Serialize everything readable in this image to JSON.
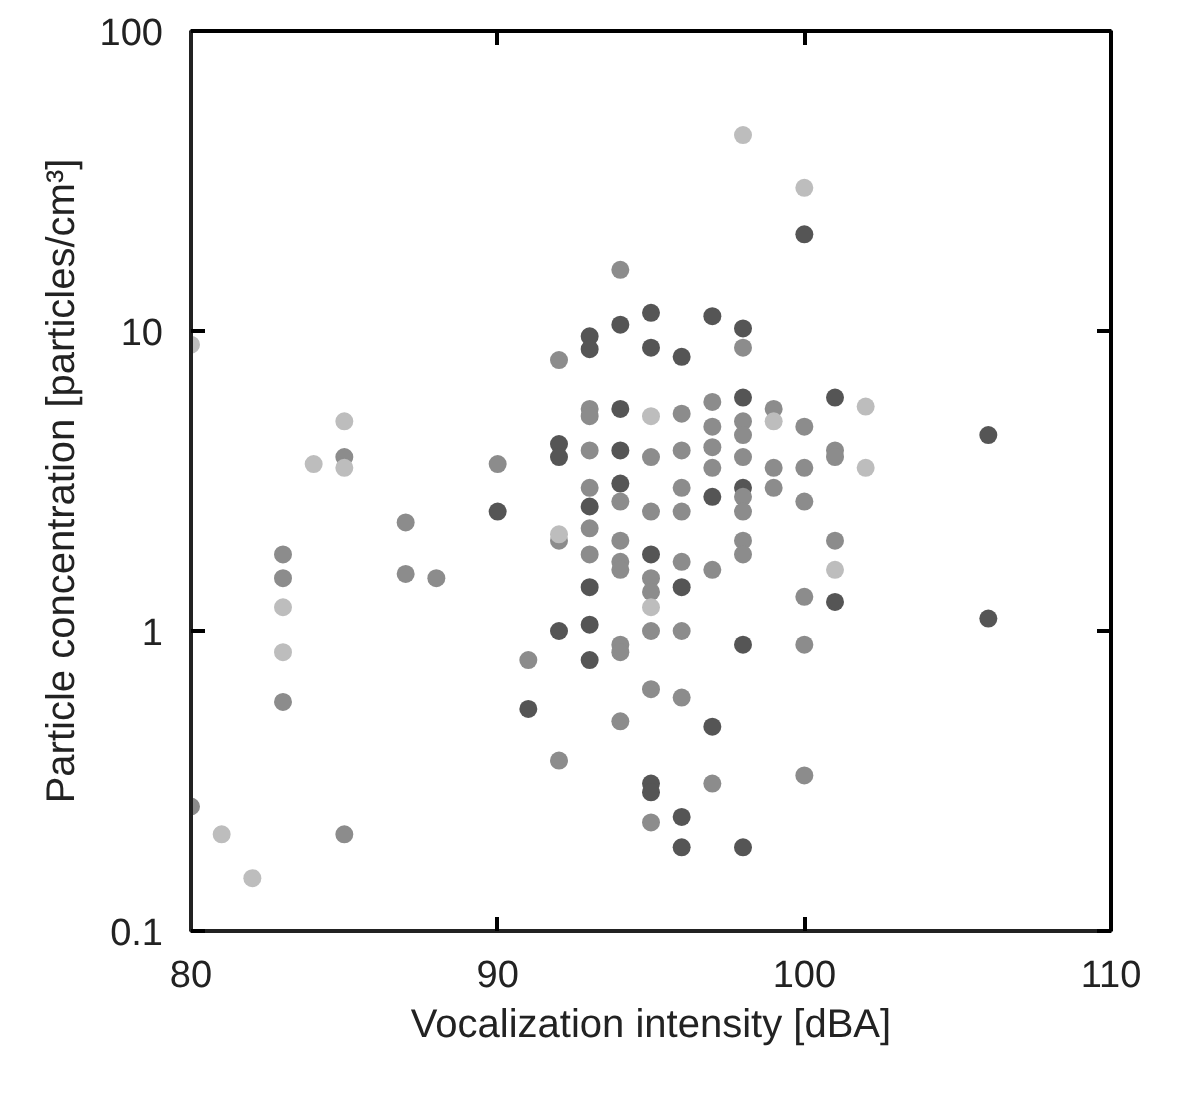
{
  "chart_data": {
    "type": "scatter",
    "xlabel": "Vocalization intensity [dBA]",
    "ylabel": "Particle concentration [particles/cm³]",
    "log": "y",
    "grid": false,
    "marker": "circle",
    "xlim": [
      80,
      110
    ],
    "ylim": [
      0.1,
      100
    ],
    "xticks": [
      80,
      90,
      100,
      110
    ],
    "yticks": [
      0.1,
      1,
      10,
      100
    ],
    "series": [
      {
        "color": "#555555",
        "x": [
          90,
          91,
          92,
          92,
          92,
          93,
          93,
          93,
          93,
          93,
          93,
          94,
          94,
          94,
          94,
          95,
          95,
          95,
          95,
          95,
          96,
          96,
          96,
          96,
          97,
          97,
          97,
          98,
          98,
          98,
          98,
          98,
          100,
          101,
          101,
          106,
          106
        ],
        "values": [
          2.5,
          0.55,
          4.2,
          3.8,
          1.0,
          9.6,
          8.7,
          2.6,
          1.4,
          1.05,
          0.8,
          10.5,
          5.5,
          4.0,
          3.1,
          11.5,
          8.8,
          1.8,
          0.31,
          0.29,
          8.2,
          1.4,
          0.24,
          0.19,
          11.2,
          2.8,
          0.48,
          10.2,
          6.0,
          3.0,
          0.9,
          0.19,
          21,
          6.0,
          1.25,
          4.5,
          1.1
        ]
      },
      {
        "color": "#8c8c8c",
        "x": [
          80,
          83,
          83,
          83,
          85,
          85,
          87,
          87,
          88,
          90,
          91,
          92,
          92,
          92,
          93,
          93,
          93,
          93,
          93,
          93,
          94,
          94,
          94,
          94,
          94,
          94,
          94,
          94,
          95,
          95,
          95,
          95,
          95,
          95,
          95,
          96,
          96,
          96,
          96,
          96,
          96,
          96,
          97,
          97,
          97,
          97,
          97,
          97,
          98,
          98,
          98,
          98,
          98,
          98,
          98,
          98,
          99,
          99,
          99,
          100,
          100,
          100,
          100,
          100,
          100,
          101,
          101,
          101
        ],
        "values": [
          0.26,
          1.8,
          1.5,
          0.58,
          3.8,
          0.21,
          2.3,
          1.55,
          1.5,
          3.6,
          0.8,
          8.0,
          2.0,
          0.37,
          5.5,
          5.2,
          4.0,
          3.0,
          2.2,
          1.8,
          16,
          2.7,
          2.0,
          1.7,
          1.6,
          0.9,
          0.85,
          0.5,
          3.8,
          2.5,
          1.5,
          1.35,
          1.0,
          0.64,
          0.23,
          5.3,
          4.0,
          3.0,
          2.5,
          1.7,
          1.0,
          0.6,
          5.8,
          4.8,
          4.1,
          3.5,
          1.6,
          0.31,
          8.8,
          5.0,
          4.5,
          3.8,
          2.8,
          2.5,
          2.0,
          1.8,
          5.5,
          3.5,
          3.0,
          4.8,
          3.5,
          2.7,
          1.3,
          0.9,
          0.33,
          4.0,
          3.8,
          2.0
        ]
      },
      {
        "color": "#bdbdbd",
        "x": [
          80,
          81,
          82,
          83,
          83,
          84,
          85,
          85,
          92,
          95,
          95,
          98,
          99,
          100,
          101,
          102,
          102
        ],
        "values": [
          9,
          0.21,
          0.15,
          1.2,
          0.85,
          3.6,
          5.0,
          3.5,
          2.1,
          5.2,
          1.2,
          45,
          5.0,
          30,
          1.6,
          5.6,
          3.5
        ]
      }
    ]
  }
}
